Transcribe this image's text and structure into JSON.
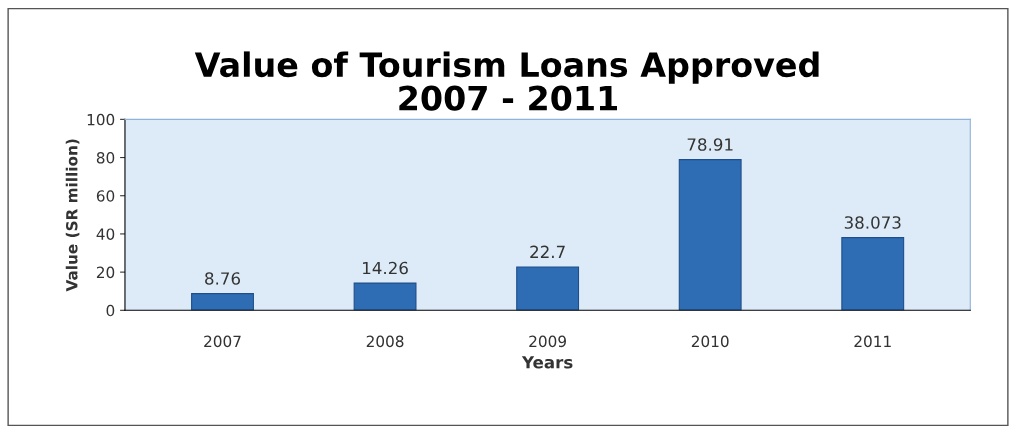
{
  "chart_data": {
    "type": "bar",
    "title": "Value of Tourism Loans Approved\n2007 - 2011",
    "xlabel": "Years",
    "ylabel": "Value (SR million)",
    "categories": [
      "2007",
      "2008",
      "2009",
      "2010",
      "2011"
    ],
    "values": [
      8.76,
      14.26,
      22.7,
      78.91,
      38.073
    ],
    "color": "#2e6db4",
    "ylim": [
      0,
      100
    ],
    "yticks": [
      0,
      20,
      40,
      60,
      80,
      100
    ],
    "data_labels": true,
    "grid": false,
    "legend": false
  }
}
